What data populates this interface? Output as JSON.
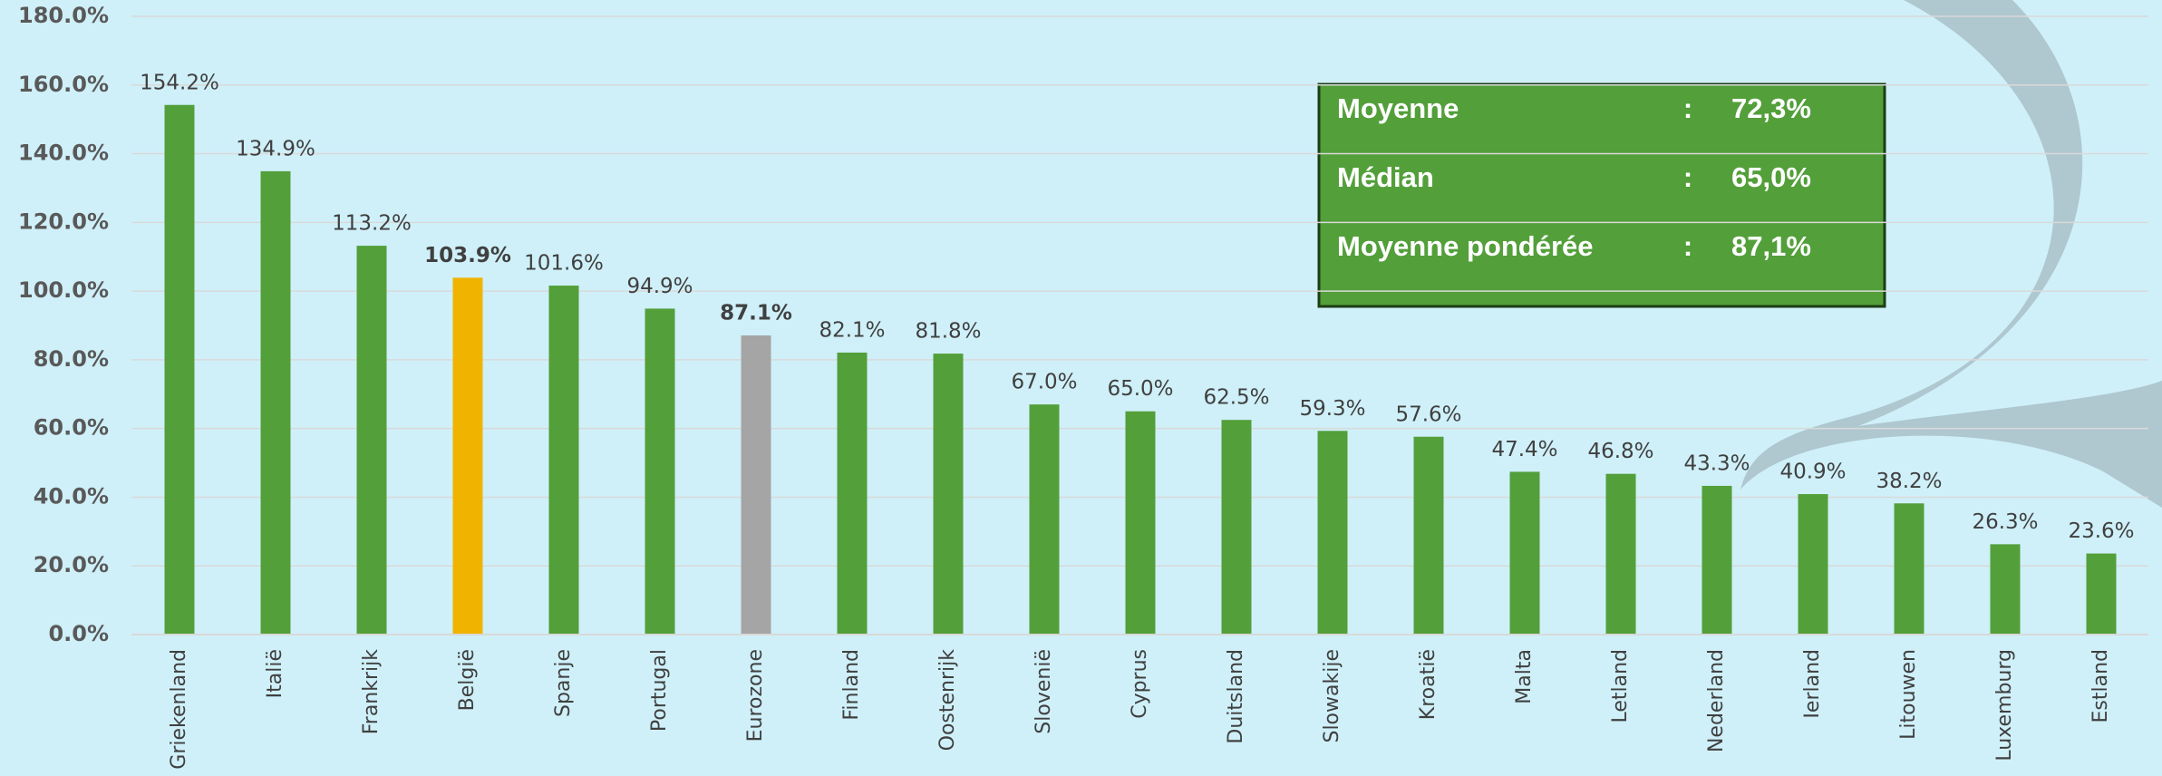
{
  "chart_data": {
    "type": "bar",
    "categories": [
      "Griekenland",
      "Italië",
      "Frankrijk",
      "België",
      "Spanje",
      "Portugal",
      "Eurozone",
      "Finland",
      "Oostenrijk",
      "Slovenië",
      "Cyprus",
      "Duitsland",
      "Slowakije",
      "Kroatië",
      "Malta",
      "Letland",
      "Nederland",
      "Ierland",
      "Litouwen",
      "Luxemburg",
      "Estland"
    ],
    "values": [
      154.2,
      134.9,
      113.2,
      103.9,
      101.6,
      94.9,
      87.1,
      82.1,
      81.8,
      67.0,
      65.0,
      62.5,
      59.3,
      57.6,
      47.4,
      46.8,
      43.3,
      40.9,
      38.2,
      26.3,
      23.6
    ],
    "value_labels": [
      "154.2%",
      "134.9%",
      "113.2%",
      "103.9%",
      "101.6%",
      "94.9%",
      "87.1%",
      "82.1%",
      "81.8%",
      "67.0%",
      "65.0%",
      "62.5%",
      "59.3%",
      "57.6%",
      "47.4%",
      "46.8%",
      "43.3%",
      "40.9%",
      "38.2%",
      "26.3%",
      "23.6%"
    ],
    "colors": [
      "#539f3a",
      "#539f3a",
      "#539f3a",
      "#f0b400",
      "#539f3a",
      "#539f3a",
      "#a5a5a5",
      "#539f3a",
      "#539f3a",
      "#539f3a",
      "#539f3a",
      "#539f3a",
      "#539f3a",
      "#539f3a",
      "#539f3a",
      "#539f3a",
      "#539f3a",
      "#539f3a",
      "#539f3a",
      "#539f3a",
      "#539f3a"
    ],
    "ylim": [
      0,
      180
    ],
    "yticks": [
      {
        "value": 0,
        "label": "0.0%"
      },
      {
        "value": 20,
        "label": "20.0%"
      },
      {
        "value": 40,
        "label": "40.0%"
      },
      {
        "value": 60,
        "label": "60.0%"
      },
      {
        "value": 80,
        "label": "80.0%"
      },
      {
        "value": 100,
        "label": "100.0%"
      },
      {
        "value": 120,
        "label": "120.0%"
      },
      {
        "value": 140,
        "label": "140.0%"
      },
      {
        "value": 160,
        "label": "160.0%"
      },
      {
        "value": 180,
        "label": "180.0%"
      }
    ],
    "grid": true,
    "annotation_box": [
      {
        "label": "Moyenne",
        "separator": ":",
        "value": "72,3%"
      },
      {
        "label": "Médian",
        "separator": ":",
        "value": "65,0%"
      },
      {
        "label": "Moyenne pondérée",
        "separator": ":",
        "value": "87,1%"
      }
    ]
  }
}
